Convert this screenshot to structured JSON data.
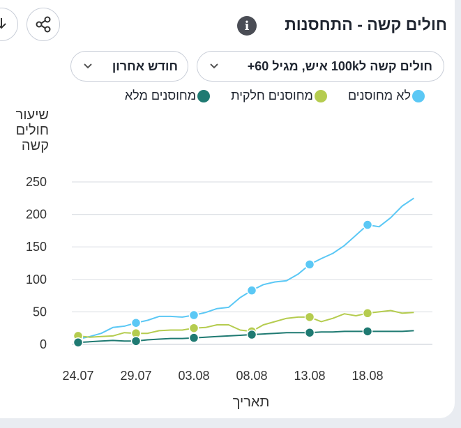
{
  "header": {
    "title": "חולים קשה - התחסנות",
    "info_glyph": "i"
  },
  "filters": {
    "metric_label": "חולים קשה ל100k איש, מגיל 60+",
    "period_label": "חודש אחרון"
  },
  "icons": {
    "info": "info-icon",
    "share": "share-icon",
    "download": "download-icon",
    "chevron": "chevron-down-icon"
  },
  "chart_data": {
    "type": "line",
    "ylabel": "שיעור חולים קשה",
    "xlabel": "תאריך",
    "ylim": [
      0,
      250
    ],
    "yticks": [
      0,
      50,
      100,
      150,
      200,
      250
    ],
    "x": [
      0,
      1,
      2,
      3,
      4,
      5,
      6,
      7,
      8,
      9,
      10,
      11,
      12,
      13,
      14,
      15,
      16,
      17,
      18,
      19,
      20,
      21,
      22,
      23,
      24,
      25,
      26,
      27,
      28,
      29,
      30
    ],
    "xtick_positions": [
      0,
      5,
      10,
      15,
      20,
      25
    ],
    "xtick_labels": [
      "24.07",
      "29.07",
      "03.08",
      "08.08",
      "13.08",
      "18.08"
    ],
    "marker_indices": [
      0,
      5,
      10,
      15,
      20,
      25
    ],
    "grid": true,
    "legend_position": "top",
    "series": [
      {
        "name": "לא מחוסנים",
        "color": "#5bc8f5",
        "values": [
          8,
          12,
          17,
          26,
          28,
          33,
          37,
          43,
          43,
          42,
          45,
          49,
          55,
          57,
          72,
          83,
          92,
          96,
          98,
          108,
          123,
          132,
          140,
          152,
          168,
          184,
          181,
          195,
          213,
          225,
          null
        ]
      },
      {
        "name": "מחוסנים חלקית",
        "color": "#b5cc4f",
        "values": [
          13,
          11,
          12,
          13,
          18,
          17,
          17,
          21,
          22,
          22,
          25,
          26,
          30,
          30,
          22,
          20,
          30,
          35,
          40,
          42,
          42,
          35,
          40,
          47,
          44,
          48,
          50,
          52,
          48,
          49,
          null
        ]
      },
      {
        "name": "מחוסנים מלא",
        "color": "#1f7a72",
        "values": [
          3,
          4,
          5,
          6,
          5,
          5,
          7,
          8,
          9,
          9,
          10,
          11,
          12,
          13,
          14,
          15,
          16,
          17,
          18,
          18,
          18,
          19,
          19,
          20,
          20,
          20,
          20,
          20,
          20,
          21,
          null
        ]
      }
    ]
  }
}
